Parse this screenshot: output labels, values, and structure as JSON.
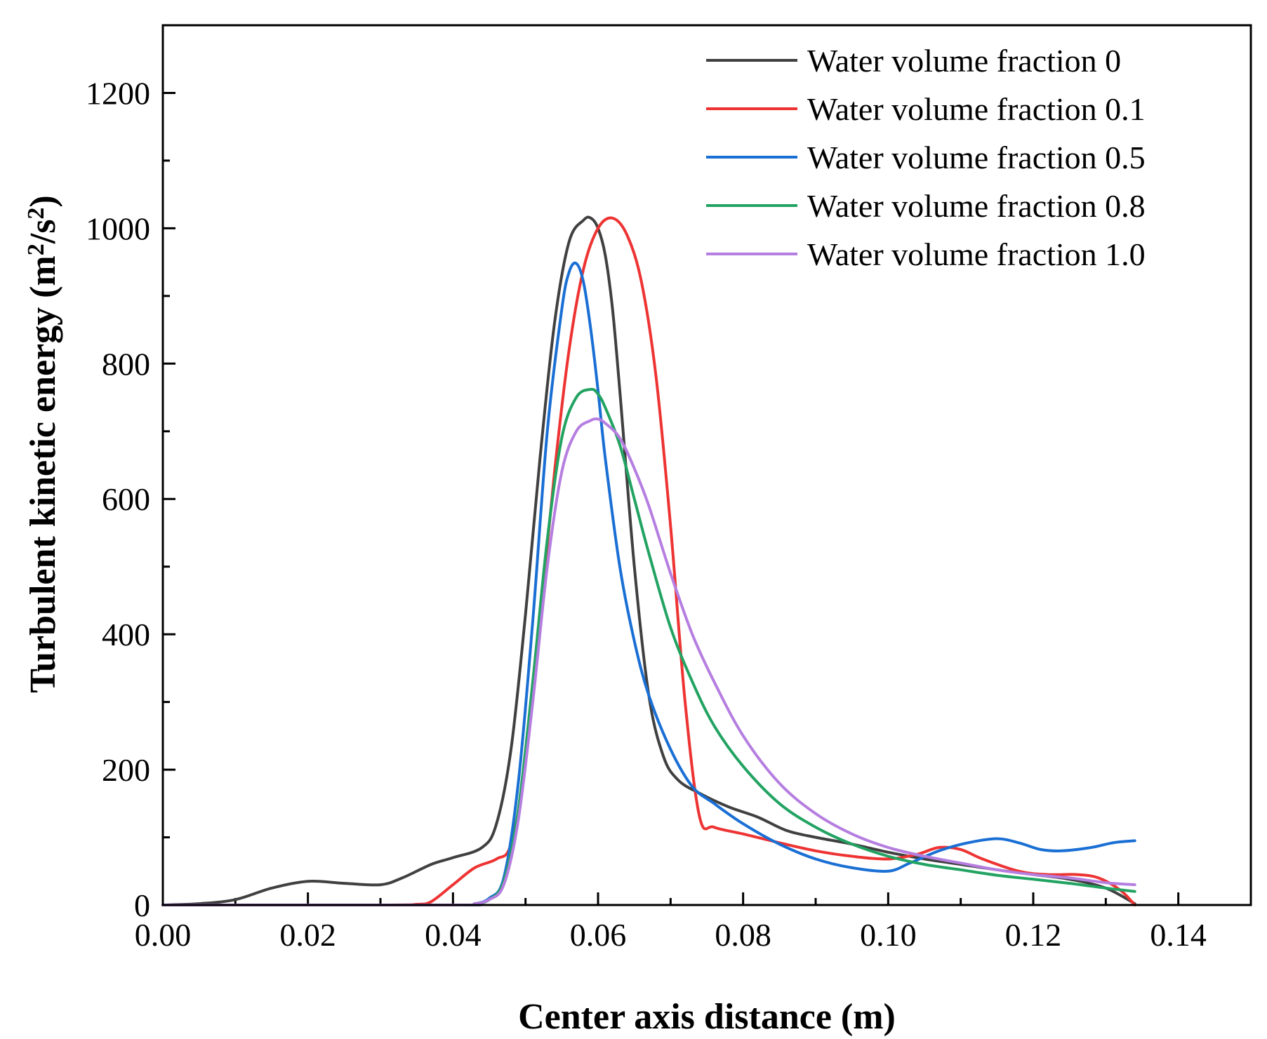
{
  "chart_data": {
    "type": "line",
    "title": "",
    "xlabel": "Center axis distance (m)",
    "ylabel_main": "Turbulent kinetic energy (m",
    "ylabel_sup1": "2",
    "ylabel_mid": "/s",
    "ylabel_sup2": "2",
    "ylabel_end": ")",
    "xlim": [
      0,
      0.15
    ],
    "ylim": [
      0,
      1300
    ],
    "x_ticks": [
      0,
      0.02,
      0.04,
      0.06,
      0.08,
      0.1,
      0.12,
      0.14
    ],
    "x_tick_labels": [
      "0.00",
      "0.02",
      "0.04",
      "0.06",
      "0.08",
      "0.10",
      "0.12",
      "0.14"
    ],
    "y_ticks": [
      0,
      200,
      400,
      600,
      800,
      1000,
      1200
    ],
    "y_tick_labels": [
      "0",
      "200",
      "400",
      "600",
      "800",
      "1000",
      "1200"
    ],
    "legend_position": "top-right",
    "series": [
      {
        "name": "Water volume fraction 0",
        "color": "#404040",
        "x": [
          0,
          0.005,
          0.01,
          0.015,
          0.02,
          0.025,
          0.03,
          0.033,
          0.037,
          0.04,
          0.044,
          0.046,
          0.048,
          0.05,
          0.052,
          0.054,
          0.056,
          0.058,
          0.059,
          0.06,
          0.061,
          0.062,
          0.063,
          0.065,
          0.067,
          0.069,
          0.071,
          0.074,
          0.078,
          0.082,
          0.086,
          0.09,
          0.095,
          0.1,
          0.105,
          0.11,
          0.115,
          0.12,
          0.125,
          0.13,
          0.134
        ],
        "values": [
          0,
          2,
          8,
          25,
          35,
          32,
          30,
          40,
          60,
          70,
          85,
          120,
          230,
          430,
          660,
          860,
          980,
          1012,
          1015,
          1000,
          960,
          880,
          760,
          500,
          310,
          220,
          185,
          165,
          145,
          130,
          110,
          100,
          90,
          78,
          68,
          60,
          52,
          45,
          38,
          25,
          2
        ]
      },
      {
        "name": "Water volume fraction 0.1",
        "color": "#ee3333",
        "x": [
          0,
          0.03,
          0.035,
          0.037,
          0.04,
          0.043,
          0.046,
          0.048,
          0.05,
          0.052,
          0.054,
          0.056,
          0.058,
          0.06,
          0.062,
          0.064,
          0.066,
          0.068,
          0.07,
          0.072,
          0.074,
          0.076,
          0.08,
          0.085,
          0.09,
          0.095,
          0.1,
          0.104,
          0.107,
          0.11,
          0.113,
          0.118,
          0.122,
          0.126,
          0.129,
          0.132,
          0.134
        ],
        "values": [
          0,
          0,
          1,
          5,
          30,
          55,
          68,
          90,
          210,
          420,
          640,
          820,
          940,
          1000,
          1015,
          990,
          920,
          780,
          560,
          300,
          130,
          115,
          105,
          92,
          80,
          72,
          68,
          75,
          85,
          82,
          68,
          50,
          45,
          45,
          40,
          22,
          0
        ]
      },
      {
        "name": "Water volume fraction 0.5",
        "color": "#1a6fd4",
        "x": [
          0,
          0.04,
          0.043,
          0.045,
          0.047,
          0.049,
          0.051,
          0.053,
          0.055,
          0.056,
          0.057,
          0.058,
          0.059,
          0.06,
          0.061,
          0.063,
          0.065,
          0.067,
          0.07,
          0.073,
          0.076,
          0.08,
          0.085,
          0.09,
          0.095,
          0.1,
          0.103,
          0.107,
          0.111,
          0.115,
          0.118,
          0.121,
          0.124,
          0.128,
          0.131,
          0.134
        ],
        "values": [
          0,
          0,
          2,
          10,
          40,
          180,
          420,
          700,
          880,
          935,
          948,
          920,
          850,
          760,
          660,
          500,
          390,
          310,
          230,
          175,
          150,
          120,
          90,
          68,
          55,
          50,
          62,
          80,
          92,
          98,
          92,
          82,
          80,
          85,
          92,
          95
        ]
      },
      {
        "name": "Water volume fraction 0.8",
        "color": "#22a362",
        "x": [
          0,
          0.04,
          0.043,
          0.045,
          0.047,
          0.049,
          0.051,
          0.053,
          0.055,
          0.057,
          0.059,
          0.06,
          0.061,
          0.063,
          0.065,
          0.067,
          0.07,
          0.073,
          0.076,
          0.08,
          0.085,
          0.09,
          0.095,
          0.1,
          0.105,
          0.11,
          0.115,
          0.12,
          0.125,
          0.13,
          0.134
        ],
        "values": [
          0,
          0,
          2,
          8,
          35,
          140,
          330,
          540,
          690,
          750,
          762,
          755,
          735,
          680,
          600,
          520,
          410,
          330,
          265,
          205,
          150,
          115,
          90,
          72,
          60,
          52,
          44,
          38,
          32,
          25,
          20
        ]
      },
      {
        "name": "Water volume fraction 1.0",
        "color": "#b57ee0",
        "x": [
          0,
          0.04,
          0.043,
          0.045,
          0.047,
          0.049,
          0.051,
          0.053,
          0.055,
          0.057,
          0.059,
          0.06,
          0.061,
          0.063,
          0.065,
          0.067,
          0.07,
          0.073,
          0.076,
          0.08,
          0.085,
          0.09,
          0.095,
          0.1,
          0.105,
          0.11,
          0.115,
          0.12,
          0.125,
          0.13,
          0.134
        ],
        "values": [
          0,
          0,
          2,
          8,
          30,
          125,
          300,
          500,
          640,
          700,
          716,
          718,
          712,
          690,
          645,
          590,
          490,
          400,
          330,
          250,
          180,
          135,
          105,
          85,
          72,
          62,
          52,
          45,
          40,
          33,
          30
        ]
      }
    ]
  }
}
